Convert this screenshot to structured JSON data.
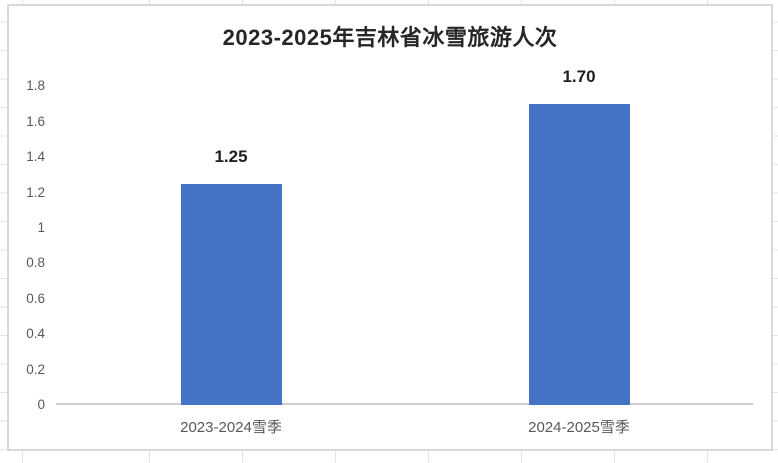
{
  "chart_data": {
    "type": "bar",
    "title": "2023-2025年吉林省冰雪旅游人次",
    "categories": [
      "2023-2024雪季",
      "2024-2025雪季"
    ],
    "values": [
      1.25,
      1.7
    ],
    "data_labels": [
      "1.25",
      "1.70"
    ],
    "y_tick_labels": [
      "1.8",
      "1.6",
      "1.4",
      "1.2",
      "1",
      "0.8",
      "0.6",
      "0.4",
      "0.2",
      "0"
    ],
    "y_tick_values": [
      1.8,
      1.6,
      1.4,
      1.2,
      1.0,
      0.8,
      0.6,
      0.4,
      0.2,
      0
    ],
    "xlabel": "",
    "ylabel": "",
    "ylim": [
      0,
      1.8
    ],
    "grid": "off",
    "legend": "none",
    "colors": {
      "bar": "#4472c4",
      "title_text": "#262626",
      "axis_text": "#595959",
      "data_label_text": "#1f1f1f",
      "axis_line": "#d0cece",
      "chart_border": "#d9d9d9",
      "sheet_gridline": "#e4e4e4"
    }
  }
}
